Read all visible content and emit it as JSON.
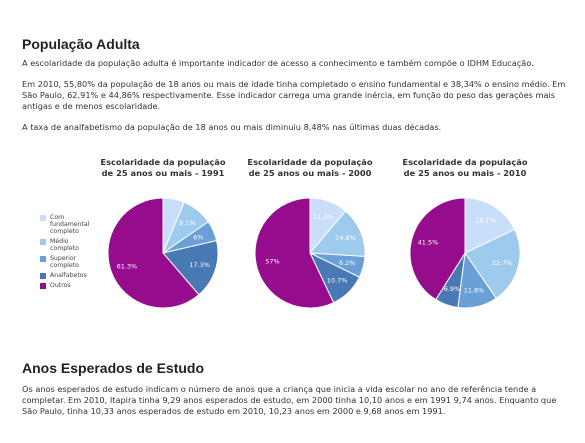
{
  "sections": [
    {
      "title": "População Adulta",
      "paragraphs": [
        "A escolaridade da população adulta é importante indicador de acesso a conhecimento e também compõe o IDHM Educação.",
        "Em 2010, 55,80% da população de 18 anos ou mais de idade tinha completado o ensino fundamental e 38,34% o ensino médio. Em São Paulo, 62,91% e 44,86% respectivamente. Esse indicador carrega uma grande inércia, em função do peso das gerações mais antigas e de menos escolaridade.",
        "A taxa de analfabetismo da população de 18 anos ou mais diminuiu 8,48% nas últimas duas décadas."
      ]
    },
    {
      "title": "Anos Esperados de Estudo",
      "paragraphs": [
        "Os anos esperados de estudo indicam o número de anos que a criança que inicia a vida escolar no ano de referência tende a completar. Em 2010, Itapira tinha 9,29 anos esperados de estudo, em 2000 tinha 10,10 anos e em 1991 9,74 anos. Enquanto que São Paulo, tinha 10,33 anos esperados de estudo em 2010, 10,23 anos em 2000 e 9,68 anos em 1991."
      ]
    }
  ],
  "legend": {
    "categories": [
      "Com fundamental completo",
      "Médio completo",
      "Superior completo",
      "Analfabetos",
      "Outros"
    ],
    "colors": [
      "#c9defa",
      "#9ecbed",
      "#6a9fd8",
      "#4879b4",
      "#950c8c"
    ]
  },
  "chart_data": [
    {
      "type": "pie",
      "title": [
        "Escolaridade da população",
        "de 25 anos ou mais - 1991"
      ],
      "values": [
        6.3,
        9.1,
        6,
        17.3,
        61.3
      ],
      "value_labels": [
        null,
        "9.1%",
        "6%",
        "17.3%",
        "61.3%"
      ]
    },
    {
      "type": "pie",
      "title": [
        "Escolaridade da população",
        "de 25 anos ou mais - 2000"
      ],
      "values": [
        11.2,
        14.8,
        6.2,
        10.7,
        57
      ],
      "value_labels": [
        "11.2%",
        "14.8%",
        "6.2%",
        "10.7%",
        "57%"
      ]
    },
    {
      "type": "pie",
      "title": [
        "Escolaridade da população",
        "de 25 anos ou mais - 2010"
      ],
      "values": [
        18.1,
        22.7,
        11.8,
        6.9,
        41.5
      ],
      "value_labels": [
        "18.1%",
        "22.7%",
        "11.8%",
        "6.9%",
        "41.5%"
      ]
    }
  ]
}
